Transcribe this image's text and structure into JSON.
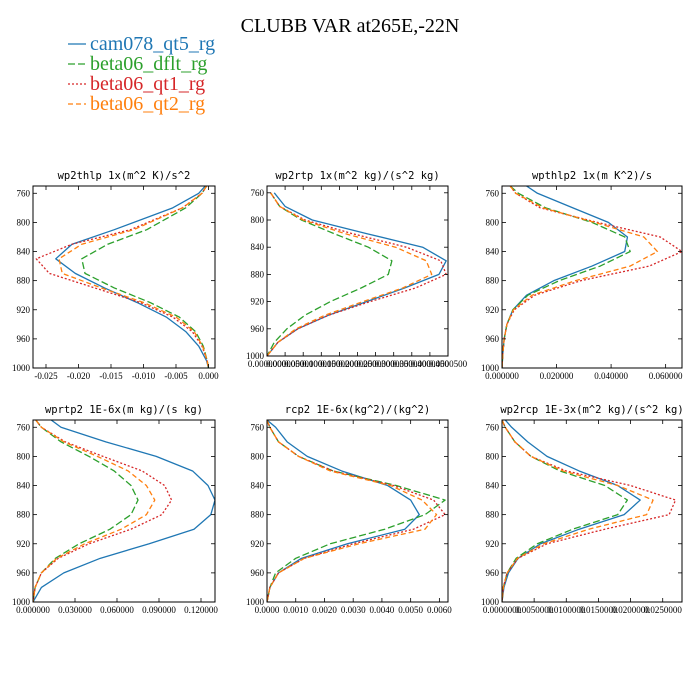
{
  "figure": {
    "title": "CLUBB VAR at265E,-22N"
  },
  "legend": [
    {
      "name": "cam078_qt5_rg",
      "color": "#1f77b4",
      "dash": "solid"
    },
    {
      "name": "beta06_dflt_rg",
      "color": "#2ca02c",
      "dash": "longdash"
    },
    {
      "name": "beta06_qt1_rg",
      "color": "#d62728",
      "dash": "dot"
    },
    {
      "name": "beta06_qt2_rg",
      "color": "#ff7f0e",
      "dash": "dash"
    }
  ],
  "chart_data": [
    {
      "type": "line",
      "title": "wp2thlp  1x(m^2 K)/s^2",
      "xlim": [
        -0.027,
        0.001
      ],
      "xticks": [
        -0.025,
        -0.02,
        -0.015,
        -0.01,
        -0.005,
        0.0
      ],
      "xtick_labels": [
        "-0.025",
        "-0.020",
        "-0.015",
        "-0.010",
        "-0.005",
        "0.000"
      ],
      "ylim": [
        1000,
        750
      ],
      "yticks": [
        760,
        800,
        840,
        880,
        920,
        960,
        1000
      ],
      "series": [
        {
          "name": "cam078_qt5_rg",
          "y": [
            750,
            760,
            780,
            810,
            830,
            850,
            870,
            890,
            910,
            930,
            950,
            970,
            990,
            1000
          ],
          "x": [
            -0.0005,
            -0.0015,
            -0.0055,
            -0.0145,
            -0.021,
            -0.0235,
            -0.0205,
            -0.016,
            -0.011,
            -0.0065,
            -0.0035,
            -0.0015,
            -0.0003,
            0.0
          ]
        },
        {
          "name": "beta06_dflt_rg",
          "y": [
            750,
            760,
            780,
            810,
            830,
            850,
            870,
            890,
            910,
            930,
            950,
            970,
            990,
            1000
          ],
          "x": [
            -0.0003,
            -0.001,
            -0.0035,
            -0.0095,
            -0.0155,
            -0.0195,
            -0.019,
            -0.0145,
            -0.009,
            -0.0045,
            -0.002,
            -0.0008,
            -0.0002,
            0.0
          ]
        },
        {
          "name": "beta06_qt1_rg",
          "y": [
            750,
            760,
            780,
            810,
            830,
            850,
            870,
            890,
            910,
            930,
            950,
            970,
            990,
            1000
          ],
          "x": [
            -0.0003,
            -0.001,
            -0.004,
            -0.012,
            -0.021,
            -0.0265,
            -0.0245,
            -0.0175,
            -0.0105,
            -0.0055,
            -0.0025,
            -0.001,
            -0.0002,
            0.0
          ]
        },
        {
          "name": "beta06_qt2_rg",
          "y": [
            750,
            760,
            780,
            810,
            830,
            850,
            870,
            890,
            910,
            930,
            950,
            970,
            990,
            1000
          ],
          "x": [
            -0.0003,
            -0.001,
            -0.004,
            -0.0115,
            -0.0195,
            -0.023,
            -0.0225,
            -0.0165,
            -0.01,
            -0.005,
            -0.0022,
            -0.0009,
            -0.0002,
            0.0
          ]
        }
      ]
    },
    {
      "type": "line",
      "title": "wp2rtp  1x(m^2 kg)/(s^2 kg)",
      "xlim": [
        0.0,
        5e-05
      ],
      "xticks": [
        0.0,
        5e-06,
        1e-05,
        1.5e-05,
        2e-05,
        2.5e-05,
        3e-05,
        3.5e-05,
        4e-05,
        4.5e-05,
        5e-05
      ],
      "xtick_labels": [
        "0.0000000",
        "0.0000050",
        "0.0000100",
        "0.0000150",
        "0.0000200",
        "0.0000250",
        "0.0000300",
        "0.0000350",
        "0.0000400",
        "0.0000450",
        "0.0000500"
      ],
      "ylim": [
        1000,
        750
      ],
      "yticks": [
        760,
        800,
        840,
        880,
        920,
        960,
        1000
      ],
      "series": [
        {
          "name": "cam078_qt5_rg",
          "y": [
            760,
            780,
            800,
            820,
            840,
            860,
            880,
            900,
            920,
            940,
            960,
            980,
            1000
          ],
          "x": [
            2e-06,
            5e-06,
            1.25e-05,
            2.75e-05,
            4.3e-05,
            4.95e-05,
            4.75e-05,
            3.8e-05,
            2.75e-05,
            1.7e-05,
            8.5e-06,
            3e-06,
            0.0
          ]
        },
        {
          "name": "beta06_dflt_rg",
          "y": [
            760,
            780,
            800,
            820,
            840,
            860,
            880,
            900,
            920,
            940,
            960,
            980,
            1000
          ],
          "x": [
            1e-06,
            3.5e-06,
            9.5e-06,
            1.85e-05,
            2.8e-05,
            3.45e-05,
            3.35e-05,
            2.6e-05,
            1.75e-05,
            1.05e-05,
            5.5e-06,
            2e-06,
            0.0
          ]
        },
        {
          "name": "beta06_qt1_rg",
          "y": [
            760,
            780,
            800,
            820,
            840,
            860,
            880,
            900,
            920,
            940,
            960,
            980,
            1000
          ],
          "x": [
            1e-06,
            3.5e-06,
            1.05e-05,
            2.35e-05,
            3.85e-05,
            4.8e-05,
            4.95e-05,
            4.1e-05,
            2.85e-05,
            1.7e-05,
            8.5e-06,
            3e-06,
            0.0
          ]
        },
        {
          "name": "beta06_qt2_rg",
          "y": [
            760,
            780,
            800,
            820,
            840,
            860,
            880,
            900,
            920,
            940,
            960,
            980,
            1000
          ],
          "x": [
            1e-06,
            3.5e-06,
            1e-05,
            2.15e-05,
            3.55e-05,
            4.4e-05,
            4.55e-05,
            3.75e-05,
            2.65e-05,
            1.6e-05,
            8e-06,
            3e-06,
            0.0
          ]
        }
      ]
    },
    {
      "type": "line",
      "title": "wpthlp2  1x(m K^2)/s",
      "xlim": [
        0.0,
        0.066
      ],
      "xticks": [
        0.0,
        0.02,
        0.04,
        0.06
      ],
      "xtick_labels": [
        "0.000000",
        "0.020000",
        "0.040000",
        "0.060000"
      ],
      "ylim": [
        1000,
        750
      ],
      "yticks": [
        760,
        800,
        840,
        880,
        920,
        960,
        1000
      ],
      "series": [
        {
          "name": "cam078_qt5_rg",
          "y": [
            750,
            760,
            780,
            800,
            820,
            840,
            860,
            880,
            900,
            920,
            940,
            960,
            980,
            1000
          ],
          "x": [
            0.009,
            0.013,
            0.026,
            0.039,
            0.046,
            0.045,
            0.033,
            0.019,
            0.009,
            0.004,
            0.0018,
            0.0008,
            0.0003,
            0.0
          ]
        },
        {
          "name": "beta06_dflt_rg",
          "y": [
            750,
            760,
            780,
            800,
            820,
            840,
            860,
            880,
            900,
            920,
            940,
            960,
            980,
            1000
          ],
          "x": [
            0.003,
            0.006,
            0.016,
            0.033,
            0.045,
            0.047,
            0.036,
            0.021,
            0.0095,
            0.004,
            0.0018,
            0.0008,
            0.0003,
            0.0
          ]
        },
        {
          "name": "beta06_qt1_rg",
          "y": [
            750,
            760,
            780,
            800,
            820,
            840,
            860,
            880,
            900,
            920,
            940,
            960,
            980,
            1000
          ],
          "x": [
            0.003,
            0.005,
            0.014,
            0.035,
            0.058,
            0.066,
            0.054,
            0.029,
            0.012,
            0.0045,
            0.0018,
            0.0008,
            0.0003,
            0.0
          ]
        },
        {
          "name": "beta06_qt2_rg",
          "y": [
            750,
            760,
            780,
            800,
            820,
            840,
            860,
            880,
            900,
            920,
            940,
            960,
            980,
            1000
          ],
          "x": [
            0.003,
            0.005,
            0.015,
            0.034,
            0.052,
            0.057,
            0.047,
            0.027,
            0.011,
            0.0042,
            0.0018,
            0.0008,
            0.0003,
            0.0
          ]
        }
      ]
    },
    {
      "type": "line",
      "title": "wprtp2  1E-6x(m kg)/(s kg)",
      "xlim": [
        0.0,
        0.13
      ],
      "xticks": [
        0.0,
        0.03,
        0.06,
        0.09,
        0.12
      ],
      "xtick_labels": [
        "0.000000",
        "0.030000",
        "0.060000",
        "0.090000",
        "0.120000"
      ],
      "ylim": [
        1000,
        750
      ],
      "yticks": [
        760,
        800,
        840,
        880,
        920,
        960,
        1000
      ],
      "series": [
        {
          "name": "cam078_qt5_rg",
          "y": [
            750,
            760,
            780,
            800,
            820,
            840,
            860,
            880,
            900,
            920,
            940,
            960,
            980,
            1000
          ],
          "x": [
            0.013,
            0.02,
            0.052,
            0.088,
            0.114,
            0.125,
            0.13,
            0.127,
            0.115,
            0.083,
            0.048,
            0.022,
            0.006,
            0.0
          ]
        },
        {
          "name": "beta06_dflt_rg",
          "y": [
            750,
            760,
            780,
            800,
            820,
            840,
            860,
            880,
            900,
            920,
            940,
            960,
            980,
            1000
          ],
          "x": [
            0.002,
            0.006,
            0.02,
            0.04,
            0.058,
            0.07,
            0.075,
            0.07,
            0.055,
            0.033,
            0.016,
            0.006,
            0.0015,
            0.0
          ]
        },
        {
          "name": "beta06_qt1_rg",
          "y": [
            750,
            760,
            780,
            800,
            820,
            840,
            860,
            880,
            900,
            920,
            940,
            960,
            980,
            1000
          ],
          "x": [
            0.002,
            0.006,
            0.023,
            0.05,
            0.078,
            0.094,
            0.099,
            0.092,
            0.07,
            0.04,
            0.018,
            0.006,
            0.0015,
            0.0
          ]
        },
        {
          "name": "beta06_qt2_rg",
          "y": [
            750,
            760,
            780,
            800,
            820,
            840,
            860,
            880,
            900,
            920,
            940,
            960,
            980,
            1000
          ],
          "x": [
            0.002,
            0.006,
            0.022,
            0.046,
            0.068,
            0.081,
            0.087,
            0.081,
            0.063,
            0.037,
            0.017,
            0.006,
            0.0015,
            0.0
          ]
        }
      ]
    },
    {
      "type": "line",
      "title": "rcp2  1E-6x(kg^2)/(kg^2)",
      "xlim": [
        0.0,
        0.0063
      ],
      "xticks": [
        0.0,
        0.001,
        0.002,
        0.003,
        0.004,
        0.005,
        0.006
      ],
      "xtick_labels": [
        "0.0000",
        "0.0010",
        "0.0020",
        "0.0030",
        "0.0040",
        "0.0050",
        "0.0060"
      ],
      "ylim": [
        1000,
        750
      ],
      "yticks": [
        760,
        800,
        840,
        880,
        920,
        960,
        1000
      ],
      "series": [
        {
          "name": "cam078_qt5_rg",
          "y": [
            750,
            760,
            780,
            800,
            820,
            840,
            860,
            880,
            900,
            920,
            940,
            960,
            980,
            1000
          ],
          "x": [
            0.0,
            0.0003,
            0.0007,
            0.0014,
            0.0026,
            0.0042,
            0.005,
            0.0053,
            0.0048,
            0.0028,
            0.0012,
            0.0004,
            0.0001,
            0.0
          ]
        },
        {
          "name": "beta06_dflt_rg",
          "y": [
            750,
            760,
            780,
            800,
            820,
            840,
            860,
            880,
            900,
            920,
            940,
            960,
            980,
            1000
          ],
          "x": [
            0.0,
            0.0001,
            0.0004,
            0.0011,
            0.0023,
            0.0045,
            0.0062,
            0.0055,
            0.0041,
            0.0022,
            0.001,
            0.0003,
            0.0001,
            0.0
          ]
        },
        {
          "name": "beta06_qt1_rg",
          "y": [
            750,
            760,
            780,
            800,
            820,
            840,
            860,
            880,
            900,
            920,
            940,
            960,
            980,
            1000
          ],
          "x": [
            0.0,
            0.0001,
            0.0004,
            0.0011,
            0.0023,
            0.0044,
            0.0058,
            0.0062,
            0.0051,
            0.003,
            0.0013,
            0.0004,
            0.0001,
            0.0
          ]
        },
        {
          "name": "beta06_qt2_rg",
          "y": [
            750,
            760,
            780,
            800,
            820,
            840,
            860,
            880,
            900,
            920,
            940,
            960,
            980,
            1000
          ],
          "x": [
            0.0,
            0.0001,
            0.0004,
            0.0011,
            0.0022,
            0.0043,
            0.0054,
            0.0059,
            0.0055,
            0.0032,
            0.0013,
            0.0004,
            0.0001,
            0.0
          ]
        }
      ]
    },
    {
      "type": "line",
      "title": "wp2rcp  1E-3x(m^2 kg)/(s^2 kg)",
      "xlim": [
        0.0,
        0.028
      ],
      "xticks": [
        0.0,
        0.005,
        0.01,
        0.015,
        0.02,
        0.025
      ],
      "xtick_labels": [
        "0.0000000",
        "0.0050000",
        "0.0100000",
        "0.0150000",
        "0.0200000",
        "0.0250000"
      ],
      "ylim": [
        1000,
        750
      ],
      "yticks": [
        760,
        800,
        840,
        880,
        920,
        960,
        1000
      ],
      "series": [
        {
          "name": "cam078_qt5_rg",
          "y": [
            750,
            760,
            780,
            800,
            820,
            840,
            860,
            880,
            900,
            920,
            940,
            960,
            980,
            1000
          ],
          "x": [
            0.0005,
            0.0015,
            0.004,
            0.007,
            0.012,
            0.018,
            0.0215,
            0.019,
            0.012,
            0.006,
            0.0025,
            0.001,
            0.0003,
            0.0
          ]
        },
        {
          "name": "beta06_dflt_rg",
          "y": [
            750,
            760,
            780,
            800,
            820,
            840,
            860,
            880,
            900,
            920,
            940,
            960,
            980,
            1000
          ],
          "x": [
            0.0,
            0.0005,
            0.002,
            0.0045,
            0.009,
            0.016,
            0.0195,
            0.018,
            0.011,
            0.0055,
            0.0022,
            0.0008,
            0.0002,
            0.0
          ]
        },
        {
          "name": "beta06_qt1_rg",
          "y": [
            750,
            760,
            780,
            800,
            820,
            840,
            860,
            880,
            900,
            920,
            940,
            960,
            980,
            1000
          ],
          "x": [
            0.0,
            0.0005,
            0.002,
            0.0045,
            0.01,
            0.02,
            0.027,
            0.026,
            0.016,
            0.007,
            0.0025,
            0.0008,
            0.0002,
            0.0
          ]
        },
        {
          "name": "beta06_qt2_rg",
          "y": [
            750,
            760,
            780,
            800,
            820,
            840,
            860,
            880,
            900,
            920,
            940,
            960,
            980,
            1000
          ],
          "x": [
            0.0,
            0.0005,
            0.002,
            0.0045,
            0.0095,
            0.018,
            0.0235,
            0.0225,
            0.0135,
            0.0065,
            0.0024,
            0.0008,
            0.0002,
            0.0
          ]
        }
      ]
    }
  ]
}
